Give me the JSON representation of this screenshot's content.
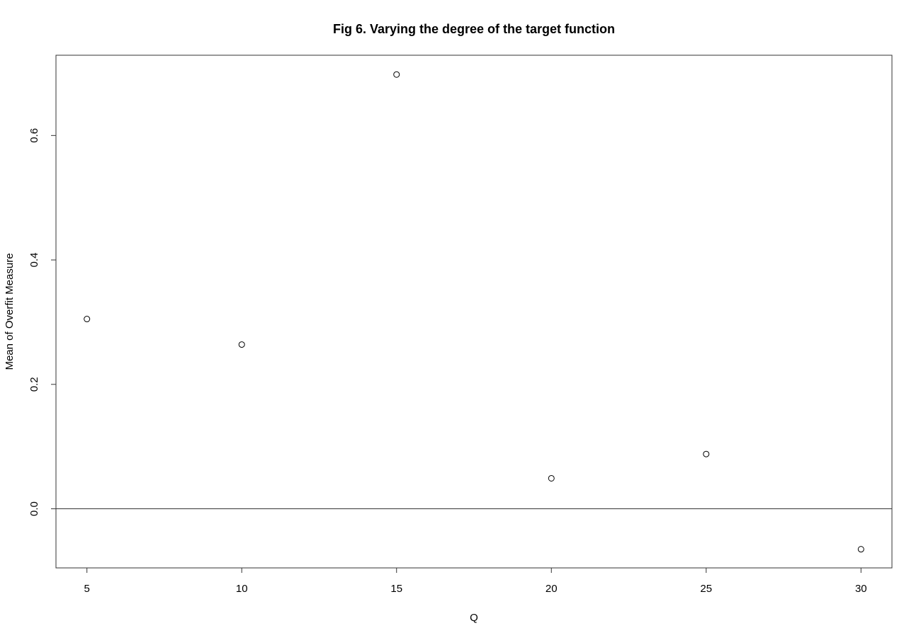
{
  "chart_data": {
    "type": "scatter",
    "title": "Fig 6. Varying the degree of the target function",
    "xlabel": "Q",
    "ylabel": "Mean of Overfit Measure",
    "x": [
      5,
      10,
      15,
      20,
      25,
      30
    ],
    "y": [
      0.305,
      0.264,
      0.698,
      0.049,
      0.088,
      -0.065
    ],
    "xlim": [
      4,
      31
    ],
    "ylim": [
      -0.095,
      0.729
    ],
    "xticks": [
      5,
      10,
      15,
      20,
      25,
      30
    ],
    "xtick_labels": [
      "5",
      "10",
      "15",
      "20",
      "25",
      "30"
    ],
    "yticks": [
      0.0,
      0.2,
      0.4,
      0.6
    ],
    "ytick_labels": [
      "0.0",
      "0.2",
      "0.4",
      "0.6"
    ],
    "reference_line": {
      "orientation": "horizontal",
      "y": 0
    },
    "grid": false,
    "legend": "none",
    "marker": "open-circle"
  }
}
